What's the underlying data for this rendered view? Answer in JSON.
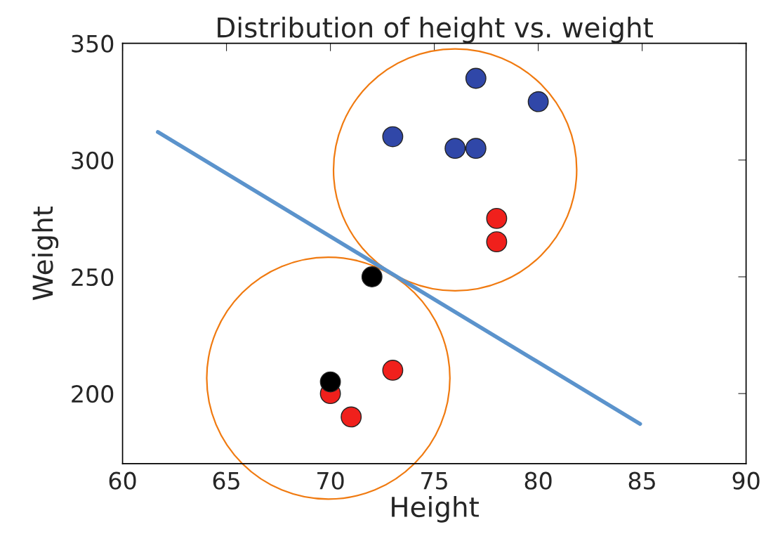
{
  "chart_data": {
    "type": "scatter",
    "title": "Distribution of height vs. weight",
    "xlabel": "Height",
    "ylabel": "Weight",
    "xlim": [
      60,
      90
    ],
    "xticks": [
      60,
      65,
      70,
      75,
      80,
      85,
      90
    ],
    "ylim": [
      170,
      350
    ],
    "yticks": [
      200,
      250,
      300,
      350
    ],
    "grid": false,
    "legend": false,
    "series": [
      {
        "marker": "circle",
        "color": "#3047a8",
        "x": [
          77,
          80,
          73,
          76,
          77
        ],
        "values": [
          335,
          325,
          310,
          305,
          305
        ]
      },
      {
        "marker": "circle",
        "color": "#f0201c",
        "x": [
          78,
          78,
          73,
          70,
          71
        ],
        "values": [
          275,
          265,
          210,
          200,
          190
        ]
      },
      {
        "marker": "circle",
        "color": "#000000",
        "x": [
          72,
          70
        ],
        "values": [
          250,
          205
        ]
      },
      {
        "type": "line",
        "marker": "none",
        "color": "#5b93cc",
        "x": [
          61.7,
          84.9
        ],
        "values": [
          312,
          187
        ]
      }
    ]
  }
}
